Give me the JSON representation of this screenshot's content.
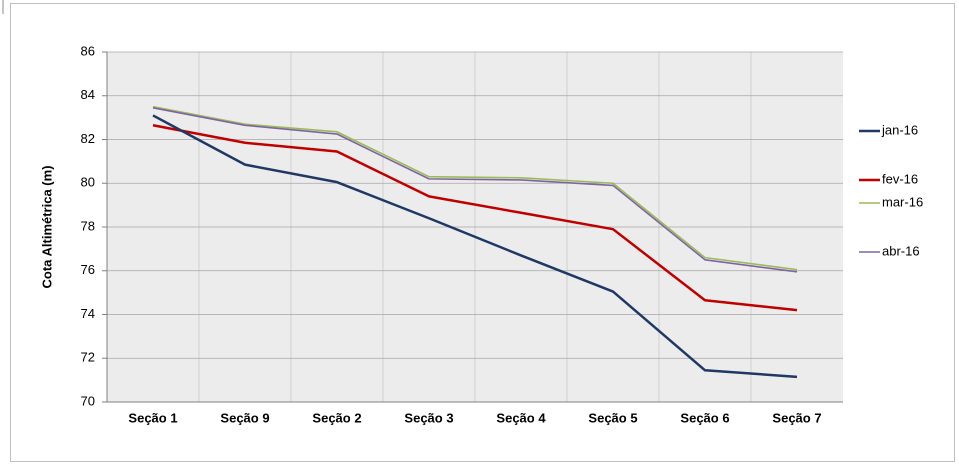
{
  "chart_data": {
    "type": "line",
    "ylabel": "Cota Altimétrica (m)",
    "categories": [
      "Seção 1",
      "Seção 9",
      "Seção 2",
      "Seção 3",
      "Seção 4",
      "Seção 5",
      "Seção 6",
      "Seção 7"
    ],
    "series": [
      {
        "name": "jan-16",
        "color": "#1f3864",
        "values": [
          83.1,
          80.85,
          80.05,
          78.4,
          76.7,
          75.05,
          71.45,
          71.15
        ]
      },
      {
        "name": "fev-16",
        "color": "#c00000",
        "values": [
          82.65,
          81.85,
          81.45,
          79.4,
          78.65,
          77.9,
          74.65,
          74.2
        ]
      },
      {
        "name": "mar-16",
        "color": "#9bbb59",
        "values": [
          83.5,
          82.7,
          82.35,
          80.3,
          80.25,
          80.0,
          76.6,
          76.05
        ]
      },
      {
        "name": "abr-16",
        "color": "#8064a2",
        "values": [
          83.45,
          82.65,
          82.25,
          80.2,
          80.15,
          79.9,
          76.5,
          75.95
        ]
      }
    ],
    "ylim": [
      70,
      86
    ],
    "yticks": [
      70,
      72,
      74,
      76,
      78,
      80,
      82,
      84,
      86
    ],
    "grid": true,
    "legend": "right"
  }
}
